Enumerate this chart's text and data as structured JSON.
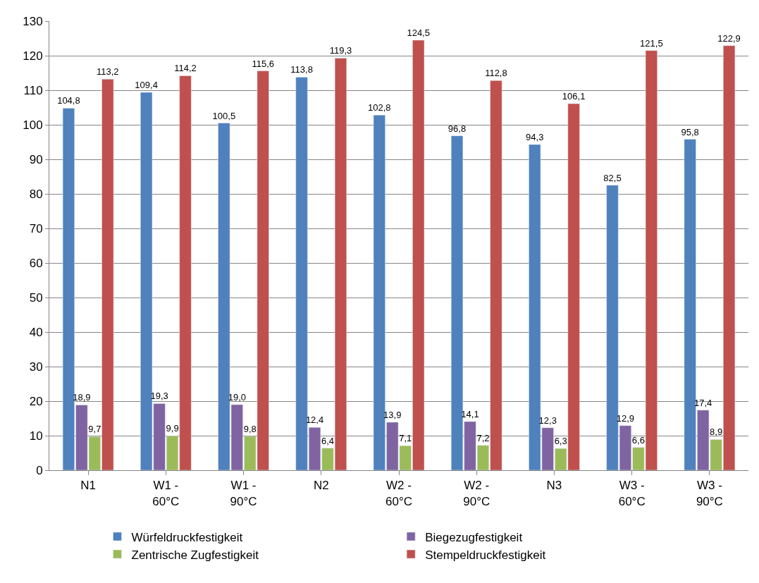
{
  "chart_data": {
    "type": "bar",
    "categories": [
      "N1",
      "W1 -\n60°C",
      "W1 -\n90°C",
      "N2",
      "W2 -\n60°C",
      "W2 -\n90°C",
      "N3",
      "W3 -\n60°C",
      "W3 -\n90°C"
    ],
    "series": [
      {
        "name": "Würfeldruckfestigkeit",
        "color": "#4f81bd",
        "values": [
          104.8,
          109.4,
          100.5,
          113.8,
          102.8,
          96.8,
          94.3,
          82.5,
          95.8
        ],
        "value_labels": [
          "104,8",
          "109,4",
          "100,5",
          "113,8",
          "102,8",
          "96,8",
          "94,3",
          "82,5",
          "95,8"
        ]
      },
      {
        "name": "Biegezugfestigkeit",
        "color": "#8064a2",
        "values": [
          18.9,
          19.3,
          19.0,
          12.4,
          13.9,
          14.1,
          12.3,
          12.9,
          17.4
        ],
        "value_labels": [
          "18,9",
          "19,3",
          "19,0",
          "12,4",
          "13,9",
          "14,1",
          "12,3",
          "12,9",
          "17,4"
        ]
      },
      {
        "name": "Zentrische Zugfestigkeit",
        "color": "#9bbb59",
        "values": [
          9.7,
          9.9,
          9.8,
          6.4,
          7.1,
          7.2,
          6.3,
          6.6,
          8.9
        ],
        "value_labels": [
          "9,7",
          "9,9",
          "9,8",
          "6,4",
          "7,1",
          "7,2",
          "6,3",
          "6,6",
          "8,9"
        ]
      },
      {
        "name": "Stempeldruckfestigkeit",
        "color": "#c0504d",
        "values": [
          113.2,
          114.2,
          115.6,
          119.3,
          124.5,
          112.8,
          106.1,
          121.5,
          122.9
        ],
        "value_labels": [
          "113,2",
          "114,2",
          "115,6",
          "119,3",
          "124,5",
          "112,8",
          "106,1",
          "121,5",
          "122,9"
        ]
      }
    ],
    "ylim": [
      0,
      130
    ],
    "yticks": [
      0,
      10,
      20,
      30,
      40,
      50,
      60,
      70,
      80,
      90,
      100,
      110,
      120,
      130
    ],
    "grid": "y",
    "legend": "bottom"
  }
}
